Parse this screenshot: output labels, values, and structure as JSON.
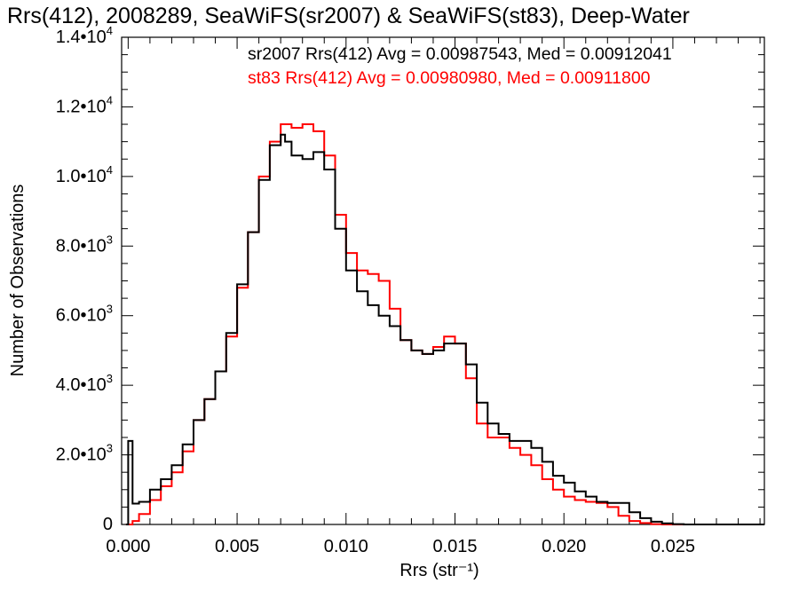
{
  "chart_data": {
    "type": "line",
    "title": "Rrs(412), 2008289, SeaWiFS(sr2007) & SeaWiFS(st83), Deep-Water",
    "xlabel": "Rrs (str⁻¹)",
    "ylabel": "Number of Observations",
    "xlim": [
      -0.0003,
      0.0292
    ],
    "ylim": [
      0,
      14000
    ],
    "x_ticks": [
      0.0,
      0.005,
      0.01,
      0.015,
      0.02,
      0.025
    ],
    "x_tick_labels": [
      "0.000",
      "0.005",
      "0.010",
      "0.015",
      "0.020",
      "0.025"
    ],
    "y_ticks": [
      0,
      2000,
      4000,
      6000,
      8000,
      10000,
      12000,
      14000
    ],
    "y_tick_labels": [
      {
        "mant": "0",
        "exp": ""
      },
      {
        "mant": "2.0•10",
        "exp": "3"
      },
      {
        "mant": "4.0•10",
        "exp": "3"
      },
      {
        "mant": "6.0•10",
        "exp": "3"
      },
      {
        "mant": "8.0•10",
        "exp": "3"
      },
      {
        "mant": "1.0•10",
        "exp": "4"
      },
      {
        "mant": "1.2•10",
        "exp": "4"
      },
      {
        "mant": "1.4•10",
        "exp": "4"
      }
    ],
    "grid": false,
    "legend_position": "top-right",
    "series": [
      {
        "name": "sr2007",
        "label": "sr2007 Rrs(412) Avg = 0.00987543, Med = 0.00912041",
        "color": "#000000",
        "step": "histogram",
        "x": [
          -0.0001,
          0.0,
          0.0002,
          0.0005,
          0.001,
          0.0015,
          0.002,
          0.0025,
          0.003,
          0.0035,
          0.004,
          0.0045,
          0.005,
          0.0055,
          0.006,
          0.0065,
          0.007,
          0.0072,
          0.0075,
          0.008,
          0.0085,
          0.009,
          0.0095,
          0.01,
          0.0105,
          0.011,
          0.0115,
          0.012,
          0.0125,
          0.013,
          0.0135,
          0.014,
          0.0145,
          0.015,
          0.0155,
          0.016,
          0.0165,
          0.017,
          0.0175,
          0.018,
          0.0185,
          0.019,
          0.0195,
          0.02,
          0.0205,
          0.021,
          0.0215,
          0.022,
          0.0225,
          0.023,
          0.0235,
          0.024,
          0.0245,
          0.025,
          0.0255,
          0.026,
          0.027,
          0.0292
        ],
        "values": [
          0,
          2400,
          600,
          650,
          1000,
          1300,
          1700,
          2300,
          3000,
          3600,
          4400,
          5500,
          6900,
          8400,
          9900,
          10900,
          11200,
          11000,
          10600,
          10500,
          10700,
          10200,
          8500,
          7300,
          6700,
          6300,
          6000,
          5700,
          5300,
          5000,
          4900,
          5000,
          5200,
          5200,
          4600,
          3500,
          2900,
          2600,
          2400,
          2400,
          2200,
          1800,
          1400,
          1200,
          950,
          800,
          650,
          620,
          620,
          350,
          180,
          80,
          30,
          10,
          0,
          0,
          0,
          0
        ]
      },
      {
        "name": "st83",
        "label": "st83 Rrs(412) Avg = 0.00980980, Med = 0.00911800",
        "color": "#ff0000",
        "step": "histogram",
        "x": [
          -0.0001,
          0.0,
          0.0002,
          0.0005,
          0.001,
          0.0015,
          0.002,
          0.0025,
          0.003,
          0.0035,
          0.004,
          0.0045,
          0.005,
          0.0055,
          0.006,
          0.0065,
          0.007,
          0.0072,
          0.0075,
          0.008,
          0.0085,
          0.009,
          0.0095,
          0.01,
          0.0105,
          0.011,
          0.0115,
          0.012,
          0.0125,
          0.013,
          0.0135,
          0.014,
          0.0145,
          0.015,
          0.0155,
          0.016,
          0.0165,
          0.017,
          0.0175,
          0.018,
          0.0185,
          0.019,
          0.0195,
          0.02,
          0.0205,
          0.021,
          0.0215,
          0.022,
          0.0225,
          0.023,
          0.0235,
          0.024,
          0.0245,
          0.025,
          0.0255,
          0.026,
          0.027,
          0.0292
        ],
        "values": [
          0,
          0,
          100,
          300,
          700,
          1100,
          1500,
          2100,
          3000,
          3600,
          4400,
          5400,
          6800,
          8400,
          10000,
          11000,
          11500,
          11500,
          11400,
          11500,
          11300,
          10600,
          8900,
          7800,
          7300,
          7200,
          7000,
          6200,
          5300,
          5000,
          4900,
          5100,
          5400,
          5200,
          4200,
          2900,
          2500,
          2500,
          2200,
          2000,
          1700,
          1300,
          1000,
          800,
          700,
          650,
          620,
          500,
          250,
          100,
          40,
          10,
          0,
          0,
          0,
          0,
          0,
          0
        ]
      }
    ]
  }
}
